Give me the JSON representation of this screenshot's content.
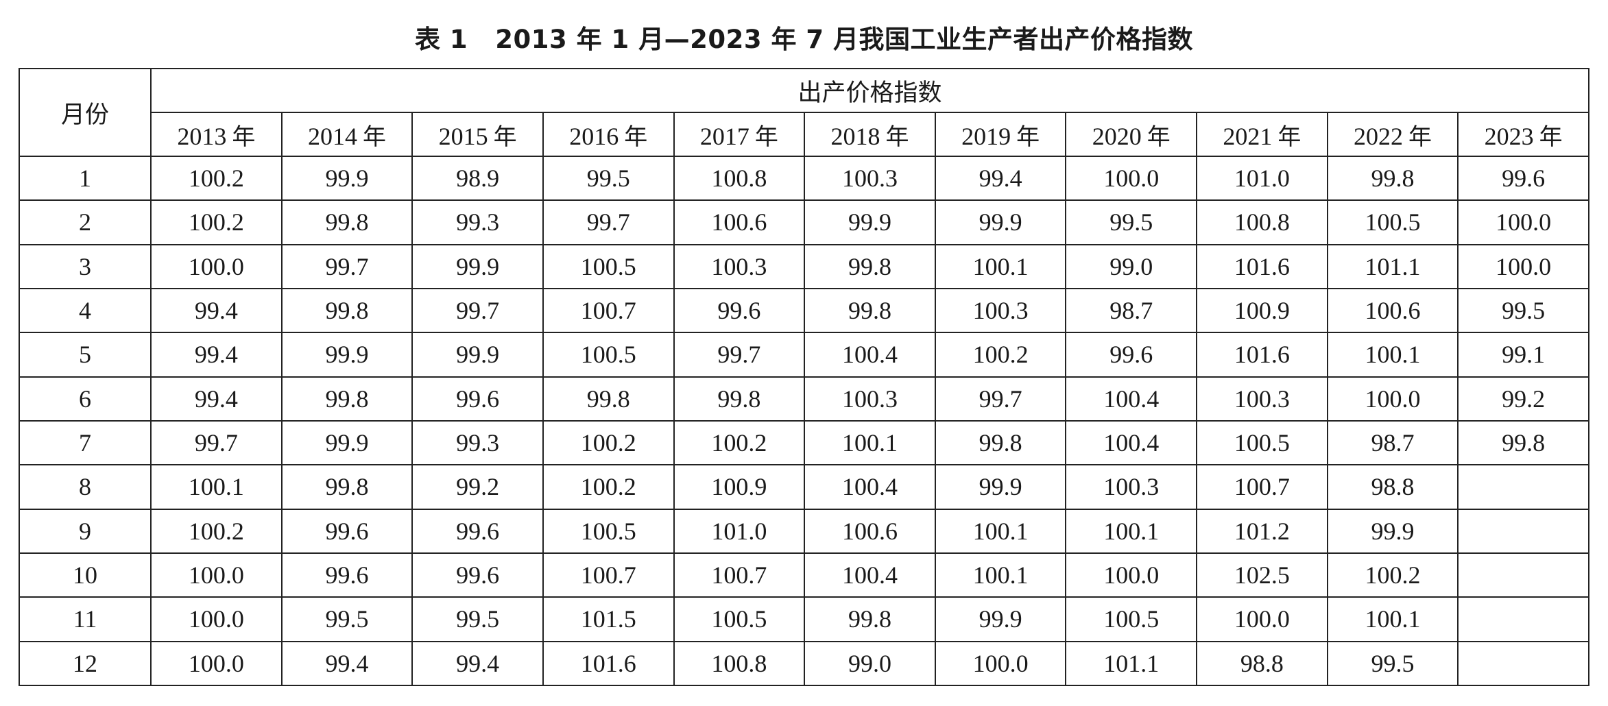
{
  "title": "表 1   2013 年 1 月—2023 年 7 月我国工业生产者出产价格指数",
  "table": {
    "month_header": "月份",
    "group_header": "出产价格指数",
    "years": [
      "2013",
      "2014",
      "2015",
      "2016",
      "2017",
      "2018",
      "2019",
      "2020",
      "2021",
      "2022",
      "2023"
    ],
    "year_unit": "年",
    "rows": [
      {
        "month": "1",
        "values": [
          "100.2",
          "99.9",
          "98.9",
          "99.5",
          "100.8",
          "100.3",
          "99.4",
          "100.0",
          "101.0",
          "99.8",
          "99.6"
        ]
      },
      {
        "month": "2",
        "values": [
          "100.2",
          "99.8",
          "99.3",
          "99.7",
          "100.6",
          "99.9",
          "99.9",
          "99.5",
          "100.8",
          "100.5",
          "100.0"
        ]
      },
      {
        "month": "3",
        "values": [
          "100.0",
          "99.7",
          "99.9",
          "100.5",
          "100.3",
          "99.8",
          "100.1",
          "99.0",
          "101.6",
          "101.1",
          "100.0"
        ]
      },
      {
        "month": "4",
        "values": [
          "99.4",
          "99.8",
          "99.7",
          "100.7",
          "99.6",
          "99.8",
          "100.3",
          "98.7",
          "100.9",
          "100.6",
          "99.5"
        ]
      },
      {
        "month": "5",
        "values": [
          "99.4",
          "99.9",
          "99.9",
          "100.5",
          "99.7",
          "100.4",
          "100.2",
          "99.6",
          "101.6",
          "100.1",
          "99.1"
        ]
      },
      {
        "month": "6",
        "values": [
          "99.4",
          "99.8",
          "99.6",
          "99.8",
          "99.8",
          "100.3",
          "99.7",
          "100.4",
          "100.3",
          "100.0",
          "99.2"
        ]
      },
      {
        "month": "7",
        "values": [
          "99.7",
          "99.9",
          "99.3",
          "100.2",
          "100.2",
          "100.1",
          "99.8",
          "100.4",
          "100.5",
          "98.7",
          "99.8"
        ]
      },
      {
        "month": "8",
        "values": [
          "100.1",
          "99.8",
          "99.2",
          "100.2",
          "100.9",
          "100.4",
          "99.9",
          "100.3",
          "100.7",
          "98.8",
          ""
        ]
      },
      {
        "month": "9",
        "values": [
          "100.2",
          "99.6",
          "99.6",
          "100.5",
          "101.0",
          "100.6",
          "100.1",
          "100.1",
          "101.2",
          "99.9",
          ""
        ]
      },
      {
        "month": "10",
        "values": [
          "100.0",
          "99.6",
          "99.6",
          "100.7",
          "100.7",
          "100.4",
          "100.1",
          "100.0",
          "102.5",
          "100.2",
          ""
        ]
      },
      {
        "month": "11",
        "values": [
          "100.0",
          "99.5",
          "99.5",
          "101.5",
          "100.5",
          "99.8",
          "99.9",
          "100.5",
          "100.0",
          "100.1",
          ""
        ]
      },
      {
        "month": "12",
        "values": [
          "100.0",
          "99.4",
          "99.4",
          "101.6",
          "100.8",
          "99.0",
          "100.0",
          "101.1",
          "98.8",
          "99.5",
          ""
        ]
      }
    ]
  }
}
